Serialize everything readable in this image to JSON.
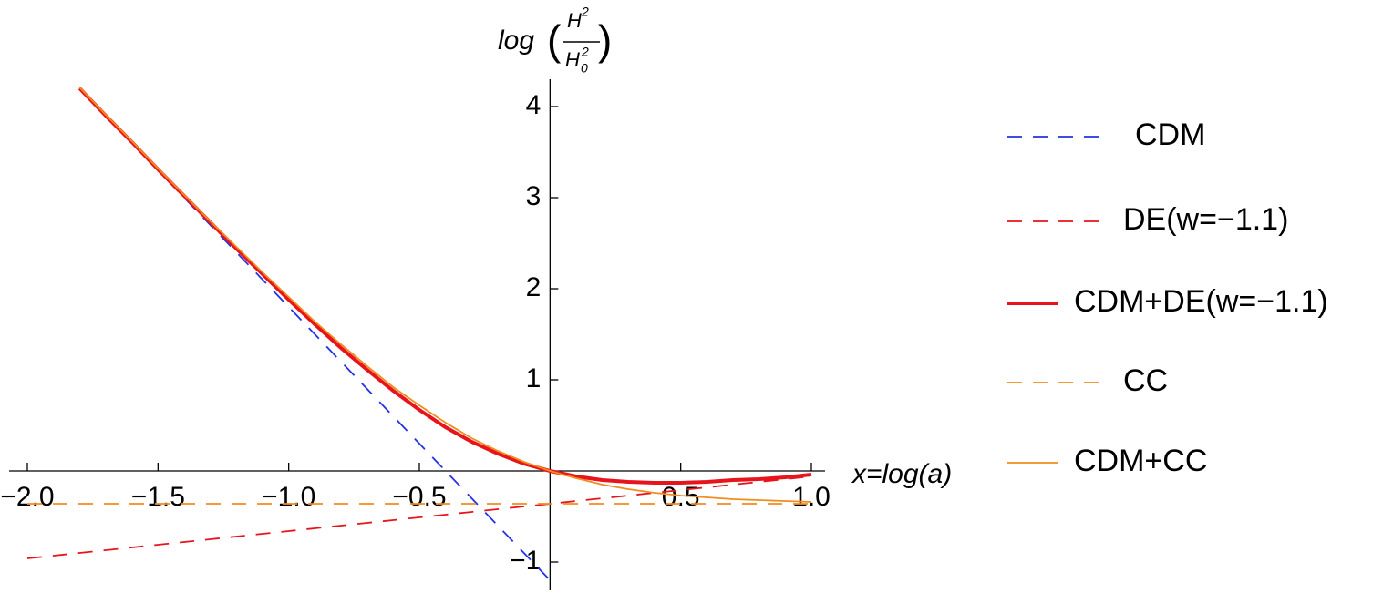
{
  "chart_data": {
    "type": "line",
    "ylabel": {
      "func": "log",
      "num": "H",
      "num_sup": "2",
      "den": "H",
      "den_sup": "2",
      "den_sub": "0"
    },
    "xlabel": "x=log(a)",
    "x": [
      -2.0,
      -1.9,
      -1.8,
      -1.7,
      -1.6,
      -1.5,
      -1.4,
      -1.3,
      -1.2,
      -1.1,
      -1.0,
      -0.9,
      -0.8,
      -0.7,
      -0.6,
      -0.5,
      -0.4,
      -0.3,
      -0.2,
      -0.1,
      0.0,
      0.1,
      0.2,
      0.3,
      0.4,
      0.5,
      0.6,
      0.7,
      0.8,
      0.9,
      1.0
    ],
    "xlim": [
      -2,
      1
    ],
    "ylim": [
      -1.28,
      4.3
    ],
    "xticks": [
      {
        "value": -2,
        "label": "−2.0"
      },
      {
        "value": -1.5,
        "label": "−1.5"
      },
      {
        "value": -1,
        "label": "−1.0"
      },
      {
        "value": -0.5,
        "label": "−0.5"
      },
      0.5,
      {
        "value": 1,
        "label": "1.0"
      }
    ],
    "yticks": [
      {
        "value": -1,
        "label": "−1"
      },
      1,
      2,
      3,
      4
    ],
    "legend": "right",
    "series": [
      {
        "name": "CDM",
        "color": "#2432e6",
        "style": "dashed",
        "values": [
          null,
          null,
          4.2,
          3.9,
          3.6,
          3.3,
          3.0,
          2.7,
          2.4,
          2.1,
          1.8,
          1.5,
          1.2,
          0.9,
          0.6,
          0.3,
          0.0,
          -0.3,
          -0.6,
          -0.9,
          -1.2,
          null,
          null,
          null,
          null,
          null,
          null,
          null,
          null,
          null,
          null
        ]
      },
      {
        "name": "DE(w=−1.1)",
        "color": "#e8141c",
        "style": "dashed",
        "values": [
          -0.96,
          -0.93,
          -0.9,
          -0.87,
          -0.84,
          -0.81,
          -0.78,
          -0.75,
          -0.72,
          -0.69,
          -0.66,
          -0.63,
          -0.6,
          -0.57,
          -0.54,
          -0.51,
          -0.48,
          -0.45,
          -0.42,
          -0.39,
          -0.36,
          -0.33,
          -0.3,
          -0.27,
          -0.24,
          -0.21,
          -0.18,
          -0.15,
          -0.12,
          -0.09,
          -0.06
        ]
      },
      {
        "name": "CDM+DE(w=−1.1)",
        "color": "#e8141c",
        "style": "thick",
        "values": [
          null,
          null,
          4.2,
          3.9,
          3.61,
          3.31,
          3.02,
          2.73,
          2.44,
          2.16,
          1.88,
          1.61,
          1.35,
          1.11,
          0.88,
          0.67,
          0.48,
          0.32,
          0.19,
          0.08,
          0.0,
          -0.06,
          -0.1,
          -0.12,
          -0.13,
          -0.13,
          -0.12,
          -0.1,
          -0.09,
          -0.07,
          -0.04
        ]
      },
      {
        "name": "CC",
        "color": "#f28c1e",
        "style": "dashed",
        "values": [
          -0.36,
          -0.36,
          -0.36,
          -0.36,
          -0.36,
          -0.36,
          -0.36,
          -0.36,
          -0.36,
          -0.36,
          -0.36,
          -0.36,
          -0.36,
          -0.36,
          -0.36,
          -0.36,
          -0.36,
          -0.36,
          -0.36,
          -0.36,
          -0.36,
          -0.36,
          -0.36,
          -0.36,
          -0.36,
          -0.36,
          -0.36,
          -0.36,
          -0.36,
          -0.36,
          -0.36
        ]
      },
      {
        "name": "CDM+CC",
        "color": "#f28c1e",
        "style": "thin",
        "values": [
          null,
          null,
          4.21,
          3.91,
          3.62,
          3.32,
          3.03,
          2.74,
          2.46,
          2.18,
          1.91,
          1.64,
          1.39,
          1.15,
          0.92,
          0.72,
          0.53,
          0.36,
          0.22,
          0.1,
          0.0,
          -0.08,
          -0.15,
          -0.2,
          -0.24,
          -0.27,
          -0.29,
          -0.31,
          -0.32,
          -0.33,
          -0.34
        ]
      }
    ]
  }
}
